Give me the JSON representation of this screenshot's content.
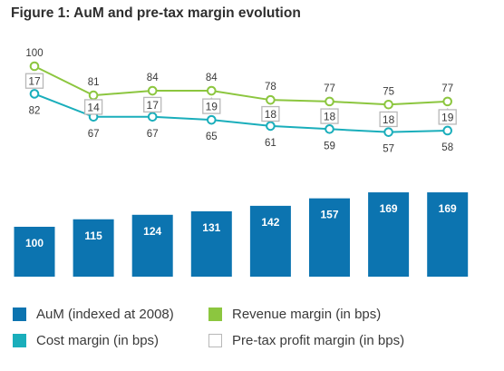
{
  "title": "Figure 1: AuM and pre-tax margin evolution",
  "colors": {
    "aum": "#0c74b0",
    "revenue": "#8cc63f",
    "cost": "#1aaebb",
    "profit_box": "#b8b8b8",
    "text": "#3a3a3a"
  },
  "chart_data": {
    "type": "bar+line",
    "categories_count": 8,
    "series": [
      {
        "name": "AuM (indexed at 2008)",
        "type": "bar",
        "values": [
          100,
          115,
          124,
          131,
          142,
          157,
          169,
          169
        ]
      },
      {
        "name": "Revenue margin (in bps)",
        "type": "line",
        "values": [
          100,
          81,
          84,
          84,
          78,
          77,
          75,
          77
        ]
      },
      {
        "name": "Cost margin (in bps)",
        "type": "line",
        "values": [
          82,
          67,
          67,
          65,
          61,
          59,
          57,
          58
        ]
      },
      {
        "name": "Pre-tax profit margin (in bps)",
        "type": "box-label",
        "values": [
          17,
          14,
          17,
          19,
          18,
          18,
          18,
          19
        ]
      }
    ],
    "grid": false,
    "legend_position": "bottom"
  },
  "legend": [
    {
      "label": "AuM (indexed at 2008)",
      "color": "#0c74b0",
      "style": "filled"
    },
    {
      "label": "Revenue margin (in bps)",
      "color": "#8cc63f",
      "style": "filled"
    },
    {
      "label": "Cost margin (in bps)",
      "color": "#1aaebb",
      "style": "filled"
    },
    {
      "label": "Pre-tax profit margin (in bps)",
      "color": "#ffffff",
      "style": "outline"
    }
  ]
}
